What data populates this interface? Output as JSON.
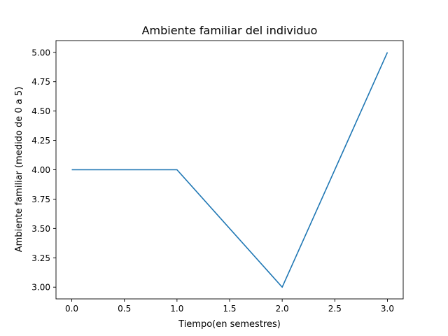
{
  "chart_data": {
    "type": "line",
    "title": "Ambiente familiar del individuo",
    "xlabel": "Tiempo(en semestres)",
    "ylabel": "Ambiente familiar (medido de 0 a 5)",
    "xlim": [
      -0.15,
      3.15
    ],
    "ylim": [
      2.9,
      5.1
    ],
    "xticks": [
      0.0,
      0.5,
      1.0,
      1.5,
      2.0,
      2.5,
      3.0
    ],
    "xtick_labels": [
      "0.0",
      "0.5",
      "1.0",
      "1.5",
      "2.0",
      "2.5",
      "3.0"
    ],
    "yticks": [
      3.0,
      3.25,
      3.5,
      3.75,
      4.0,
      4.25,
      4.5,
      4.75,
      5.0
    ],
    "ytick_labels": [
      "3.00",
      "3.25",
      "3.50",
      "3.75",
      "4.00",
      "4.25",
      "4.50",
      "4.75",
      "5.00"
    ],
    "grid": false,
    "series": [
      {
        "x": [
          0,
          1,
          2,
          3
        ],
        "y": [
          4,
          4,
          3,
          5
        ],
        "color": "#1f77b4"
      }
    ]
  }
}
